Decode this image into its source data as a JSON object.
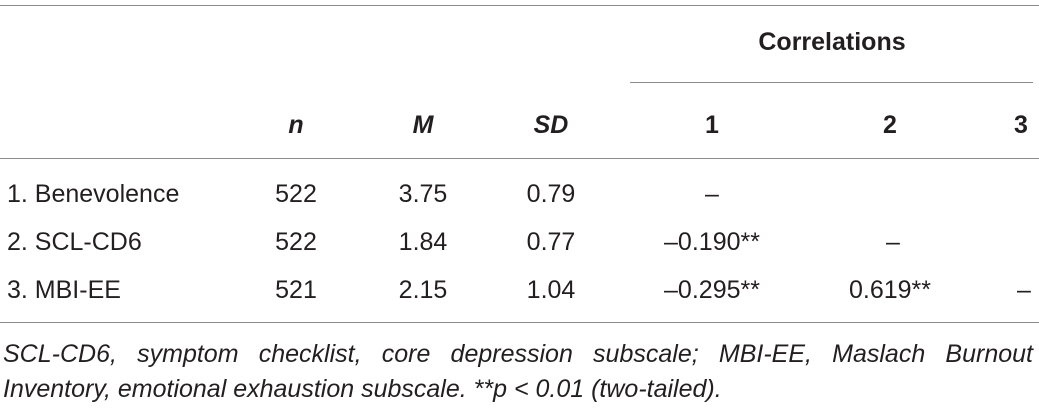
{
  "table": {
    "group_header": "Correlations",
    "columns": [
      "n",
      "M",
      "SD",
      "1",
      "2",
      "3"
    ],
    "rows": [
      {
        "label": "1. Benevolence",
        "n": "522",
        "m": "3.75",
        "sd": "0.79",
        "c1": "–",
        "c2": "",
        "c3": ""
      },
      {
        "label": "2. SCL-CD6",
        "n": "522",
        "m": "1.84",
        "sd": "0.77",
        "c1": "–0.190**",
        "c2": "–",
        "c3": ""
      },
      {
        "label": "3. MBI-EE",
        "n": "521",
        "m": "2.15",
        "sd": "1.04",
        "c1": "–0.295**",
        "c2": "0.619**",
        "c3": "–"
      }
    ],
    "note": "SCL-CD6, symptom checklist, core depression subscale; MBI-EE, Maslach Burnout Inventory, emotional exhaustion subscale. **p < 0.01 (two-tailed)."
  }
}
